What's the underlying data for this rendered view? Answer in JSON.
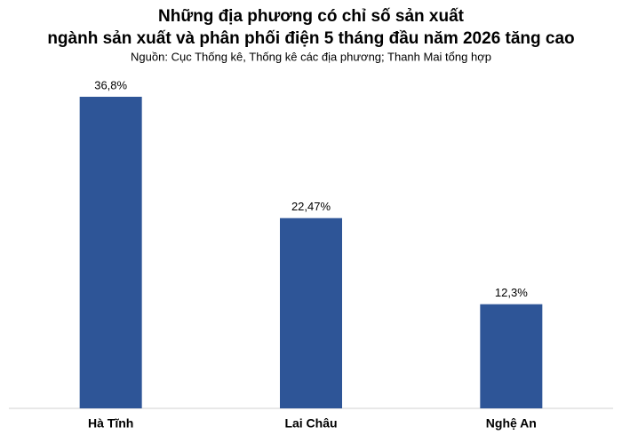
{
  "chart_data": {
    "type": "bar",
    "title": [
      "Những địa phương có chỉ số sản xuất",
      "ngành sản xuất và phân phối điện 5 tháng đầu năm 2026 tăng cao"
    ],
    "subtitle": "Nguồn: Cục Thống kê, Thống kê các địa phương; Thanh Mai tổng hợp",
    "categories": [
      "Hà Tĩnh",
      "Lai Châu",
      "Nghệ An"
    ],
    "values": [
      36.8,
      22.47,
      12.3
    ],
    "value_labels": [
      "36,8%",
      "22,47%",
      "12,3%"
    ],
    "color": "#2e5597"
  }
}
